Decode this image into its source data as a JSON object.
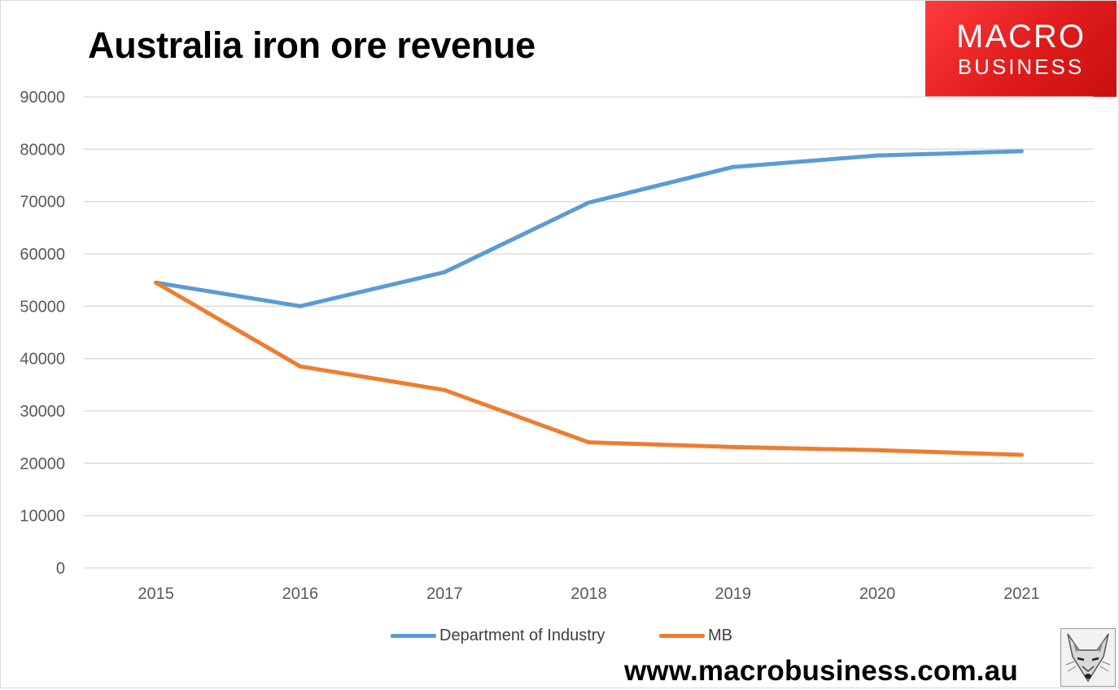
{
  "chart_data": {
    "type": "line",
    "title": "Australia iron ore revenue",
    "xlabel": "",
    "ylabel": "",
    "categories": [
      "2015",
      "2016",
      "2017",
      "2018",
      "2019",
      "2020",
      "2021"
    ],
    "yticks": [
      "0",
      "10000",
      "20000",
      "30000",
      "40000",
      "50000",
      "60000",
      "70000",
      "80000",
      "90000"
    ],
    "ylim": [
      0,
      90000
    ],
    "grid": true,
    "legend_position": "bottom",
    "series": [
      {
        "name": "Department of Industry",
        "color": "#5b9bd5",
        "values": [
          54500,
          50000,
          56500,
          69800,
          76600,
          78800,
          79600
        ]
      },
      {
        "name": "MB",
        "color": "#ed7d31",
        "values": [
          54500,
          38500,
          34000,
          24000,
          23100,
          22500,
          21600
        ]
      }
    ]
  },
  "branding": {
    "logo_line1": "MACRO",
    "logo_line2": "BUSINESS",
    "website": "www.macrobusiness.com.au",
    "logo_color": "#e82020",
    "mascot_icon": "fox-icon"
  }
}
